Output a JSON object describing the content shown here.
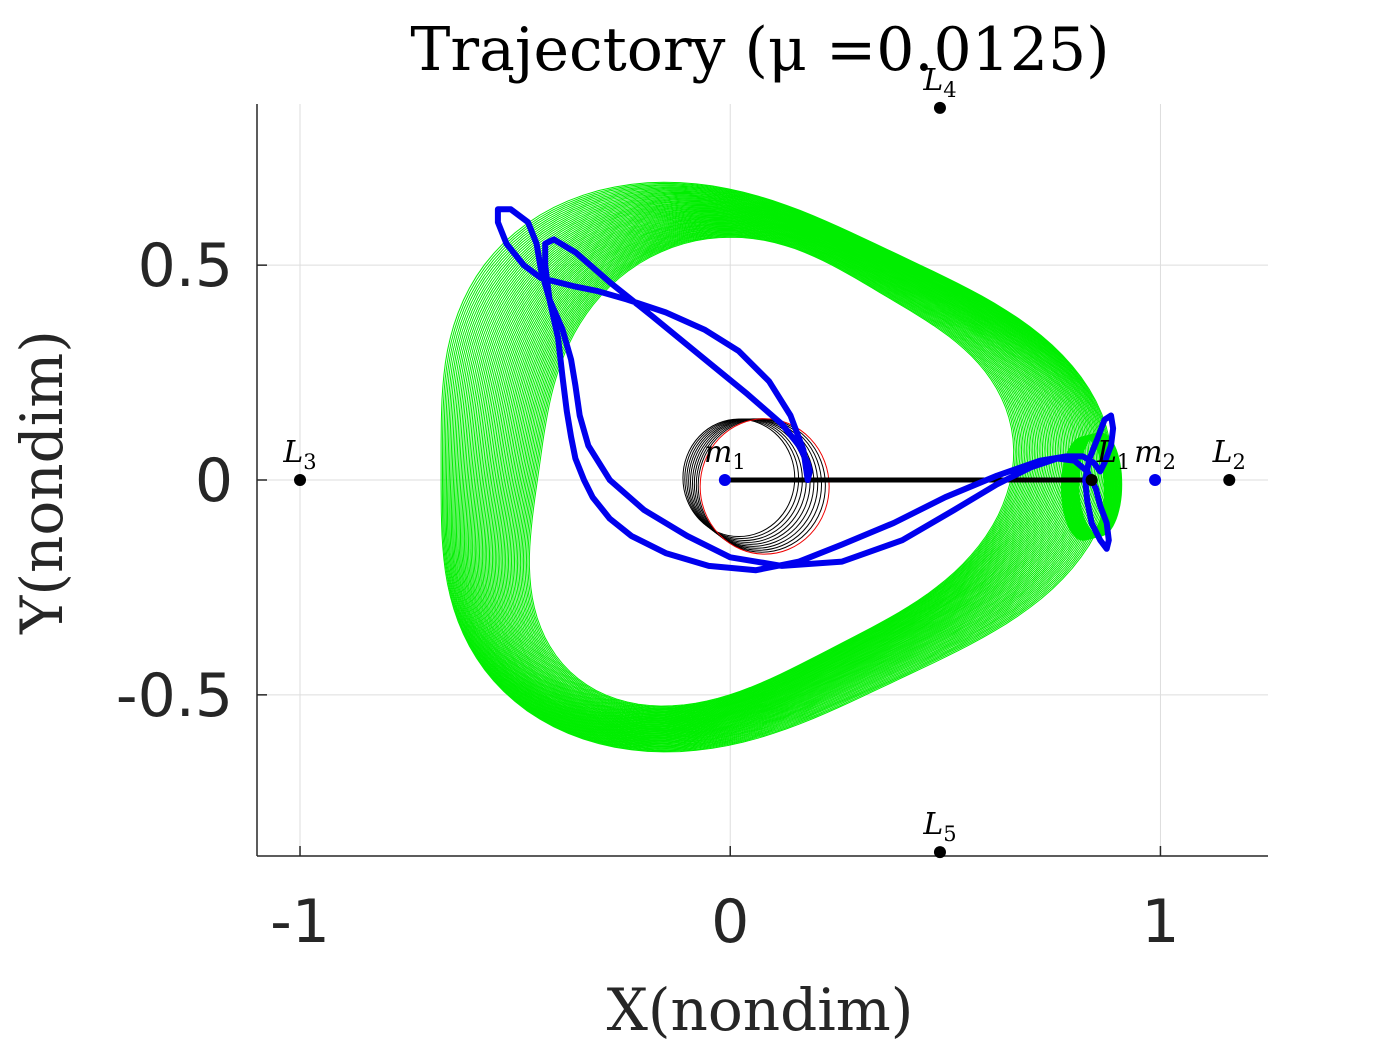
{
  "chart_data": {
    "type": "line",
    "title": "Trajectory (μ =0.0125)",
    "xlabel": "X(nondim)",
    "ylabel": "Y(nondim)",
    "xlim": [
      -1.1,
      1.25
    ],
    "ylim": [
      -0.875,
      0.875
    ],
    "xticks": [
      -1,
      0,
      1
    ],
    "xtick_labels": [
      "-1",
      "0",
      "1"
    ],
    "yticks": [
      -0.5,
      0,
      0.5
    ],
    "ytick_labels": [
      "-0.5",
      "0",
      "0.5"
    ],
    "grid": true,
    "colors": {
      "spiral": "#00ee00",
      "main_orbit": "#0000ee",
      "inner_orbit": "#000000",
      "inner_orbit_last": "#ee0000",
      "line": "#000000",
      "primary": "#0000ee",
      "lagrange": "#000000",
      "axis": "#262626",
      "grid": "#dddddd"
    },
    "points": [
      {
        "label": "L",
        "sub": "1",
        "x": 0.84,
        "y": 0.0,
        "kind": "lagrange",
        "label_dx": 22,
        "label_dy": -18
      },
      {
        "label": "L",
        "sub": "2",
        "x": 1.16,
        "y": 0.0,
        "kind": "lagrange",
        "label_dx": 0,
        "label_dy": -18
      },
      {
        "label": "L",
        "sub": "3",
        "x": -1.0,
        "y": 0.0,
        "kind": "lagrange",
        "label_dx": 0,
        "label_dy": -18
      },
      {
        "label": "L",
        "sub": "4",
        "x": 0.4875,
        "y": 0.866,
        "kind": "lagrange",
        "label_dx": 0,
        "label_dy": -18
      },
      {
        "label": "L",
        "sub": "5",
        "x": 0.4875,
        "y": -0.866,
        "kind": "lagrange",
        "label_dx": 0,
        "label_dy": -18
      },
      {
        "label": "m",
        "sub": "1",
        "x": -0.0125,
        "y": 0.0,
        "kind": "primary",
        "label_dx": 0,
        "label_dy": -18
      },
      {
        "label": "m",
        "sub": "2",
        "x": 0.9875,
        "y": 0.0,
        "kind": "primary",
        "label_dx": 0,
        "label_dy": -18
      }
    ],
    "segment": {
      "x": [
        -0.0125,
        0.84
      ],
      "y": [
        0.0,
        0.0
      ]
    },
    "main_orbit": {
      "x": [
        0.18,
        0.17,
        0.14,
        0.09,
        0.02,
        -0.06,
        -0.15,
        -0.24,
        -0.31,
        -0.36,
        -0.4,
        -0.44,
        -0.48,
        -0.52,
        -0.54,
        -0.54,
        -0.51,
        -0.47,
        -0.45,
        -0.44,
        -0.42,
        -0.39,
        -0.37,
        -0.36,
        -0.35,
        -0.33,
        -0.28,
        -0.2,
        -0.1,
        0.0,
        0.12,
        0.26,
        0.4,
        0.52,
        0.62,
        0.7,
        0.76,
        0.8,
        0.83,
        0.85,
        0.86,
        0.875,
        0.88,
        0.875,
        0.86,
        0.84,
        0.83,
        0.825,
        0.835,
        0.855,
        0.87,
        0.885,
        0.89,
        0.885,
        0.87,
        0.86,
        0.845,
        0.82,
        0.78,
        0.72,
        0.62,
        0.5,
        0.38,
        0.26,
        0.16,
        0.06,
        -0.05,
        -0.15,
        -0.23,
        -0.28,
        -0.32,
        -0.34,
        -0.36,
        -0.37,
        -0.38,
        -0.39,
        -0.4,
        -0.42,
        -0.43,
        -0.43,
        -0.41,
        -0.36,
        -0.28,
        -0.18,
        -0.07,
        0.04,
        0.12,
        0.16,
        0.18,
        0.185,
        0.18
      ],
      "y": [
        0.0,
        0.07,
        0.15,
        0.23,
        0.3,
        0.35,
        0.39,
        0.42,
        0.44,
        0.45,
        0.46,
        0.47,
        0.5,
        0.55,
        0.6,
        0.63,
        0.63,
        0.6,
        0.55,
        0.49,
        0.42,
        0.35,
        0.28,
        0.22,
        0.15,
        0.08,
        0.0,
        -0.07,
        -0.13,
        -0.18,
        -0.2,
        -0.19,
        -0.14,
        -0.07,
        -0.01,
        0.03,
        0.05,
        0.045,
        0.02,
        -0.02,
        -0.06,
        -0.1,
        -0.14,
        -0.16,
        -0.14,
        -0.1,
        -0.05,
        0.0,
        0.05,
        0.1,
        0.14,
        0.15,
        0.12,
        0.08,
        0.04,
        0.02,
        0.04,
        0.055,
        0.055,
        0.045,
        0.01,
        -0.04,
        -0.1,
        -0.15,
        -0.19,
        -0.21,
        -0.2,
        -0.17,
        -0.13,
        -0.09,
        -0.04,
        0.0,
        0.05,
        0.1,
        0.16,
        0.24,
        0.33,
        0.42,
        0.5,
        0.55,
        0.56,
        0.53,
        0.46,
        0.38,
        0.29,
        0.2,
        0.13,
        0.08,
        0.04,
        0.02,
        0.0
      ]
    }
  }
}
